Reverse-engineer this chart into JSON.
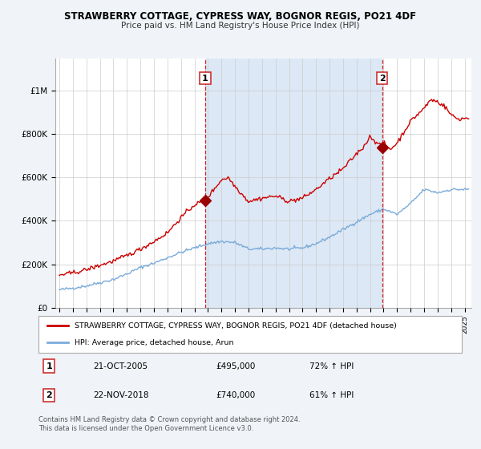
{
  "title": "STRAWBERRY COTTAGE, CYPRESS WAY, BOGNOR REGIS, PO21 4DF",
  "subtitle": "Price paid vs. HM Land Registry's House Price Index (HPI)",
  "bg_color": "#f0f4f8",
  "plot_bg_color": "#ffffff",
  "shade_color": "#dce8f5",
  "red_color": "#cc0000",
  "blue_color": "#7aabda",
  "vline_color": "#cc0000",
  "sale1_x": 2005.8,
  "sale1_y": 495000,
  "sale1_label": "1",
  "sale2_x": 2018.9,
  "sale2_y": 740000,
  "sale2_label": "2",
  "ylim": [
    0,
    1150000
  ],
  "xlim": [
    1994.7,
    2025.5
  ],
  "yticks": [
    0,
    200000,
    400000,
    600000,
    800000,
    1000000
  ],
  "ytick_labels": [
    "£0",
    "£200K",
    "£400K",
    "£600K",
    "£800K",
    "£1M"
  ],
  "xticks": [
    1995,
    1996,
    1997,
    1998,
    1999,
    2000,
    2001,
    2002,
    2003,
    2004,
    2005,
    2006,
    2007,
    2008,
    2009,
    2010,
    2011,
    2012,
    2013,
    2014,
    2015,
    2016,
    2017,
    2018,
    2019,
    2020,
    2021,
    2022,
    2023,
    2024,
    2025
  ],
  "legend_entries": [
    "STRAWBERRY COTTAGE, CYPRESS WAY, BOGNOR REGIS, PO21 4DF (detached house)",
    "HPI: Average price, detached house, Arun"
  ],
  "annotation1": {
    "label": "1",
    "date": "21-OCT-2005",
    "price": "£495,000",
    "pct": "72% ↑ HPI"
  },
  "annotation2": {
    "label": "2",
    "date": "22-NOV-2018",
    "price": "£740,000",
    "pct": "61% ↑ HPI"
  },
  "footer": "Contains HM Land Registry data © Crown copyright and database right 2024.\nThis data is licensed under the Open Government Licence v3.0."
}
